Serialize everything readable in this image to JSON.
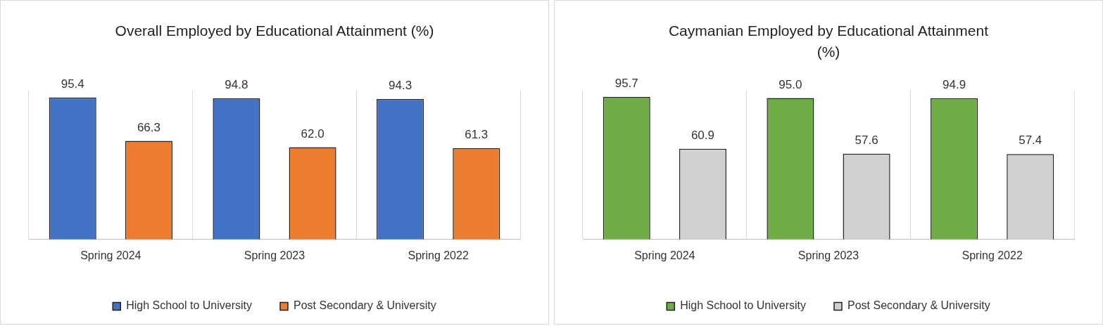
{
  "chart_data": [
    {
      "type": "bar",
      "title": "Overall Employed by Educational Attainment (%)",
      "categories": [
        "Spring 2024",
        "Spring 2023",
        "Spring 2022"
      ],
      "series": [
        {
          "name": "High School to University",
          "color": "#4472c4",
          "values": [
            95.4,
            94.8,
            94.3
          ],
          "value_labels": [
            "95.4",
            "94.8",
            "94.3"
          ]
        },
        {
          "name": "Post Secondary & University",
          "color": "#ed7d31",
          "values": [
            66.3,
            62.0,
            61.3
          ],
          "value_labels": [
            "66.3",
            "62.0",
            "61.3"
          ]
        }
      ],
      "grid": "x",
      "legend": "bottom",
      "tick_labels": "x"
    },
    {
      "type": "bar",
      "title": "Caymanian Employed by Educational Attainment (%)",
      "categories": [
        "Spring 2024",
        "Spring 2023",
        "Spring 2022"
      ],
      "series": [
        {
          "name": "High School to University",
          "color": "#70ad47",
          "values": [
            95.7,
            95.0,
            94.9
          ],
          "value_labels": [
            "95.7",
            "95.0",
            "94.9"
          ]
        },
        {
          "name": "Post Secondary & University",
          "color": "#d0d0d0",
          "values": [
            60.9,
            57.6,
            57.4
          ],
          "value_labels": [
            "60.9",
            "57.6",
            "57.4"
          ]
        }
      ],
      "grid": "x",
      "legend": "bottom",
      "tick_labels": "x"
    }
  ]
}
